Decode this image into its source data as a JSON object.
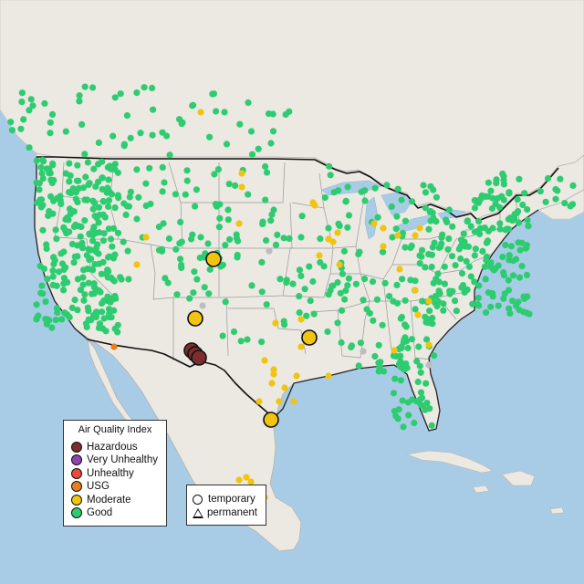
{
  "map": {
    "colors": {
      "water": "#a9cce6",
      "land": "#ece8e2",
      "land_border": "#8e8e8e",
      "country_border": "#111111",
      "grey_station": "#bdbdbd"
    }
  },
  "legend": {
    "title": "Air Quality Index",
    "items": [
      {
        "label": "Hazardous",
        "color": "#7e2d2d"
      },
      {
        "label": "Very Unhealthy",
        "color": "#8e44ad"
      },
      {
        "label": "Unhealthy",
        "color": "#e74c3c"
      },
      {
        "label": "USG",
        "color": "#e67e22"
      },
      {
        "label": "Moderate",
        "color": "#f1c40f"
      },
      {
        "label": "Good",
        "color": "#2ecc71"
      }
    ],
    "shapes": [
      {
        "label": "temporary",
        "shape": "circle"
      },
      {
        "label": "permanent",
        "shape": "triangle"
      }
    ]
  },
  "highlighted_stations": [
    {
      "aqi": "Hazardous",
      "shape": "circle"
    },
    {
      "aqi": "Hazardous",
      "shape": "circle"
    },
    {
      "aqi": "Hazardous",
      "shape": "circle"
    },
    {
      "aqi": "Moderate",
      "shape": "circle"
    },
    {
      "aqi": "Moderate",
      "shape": "circle"
    },
    {
      "aqi": "Moderate",
      "shape": "circle"
    },
    {
      "aqi": "Moderate",
      "shape": "circle"
    }
  ],
  "stations_sample": [
    {
      "aqi": "Good"
    },
    {
      "aqi": "Good"
    },
    {
      "aqi": "Good"
    },
    {
      "aqi": "Good"
    },
    {
      "aqi": "Good"
    },
    {
      "aqi": "Good"
    },
    {
      "aqi": "Good"
    },
    {
      "aqi": "Good"
    },
    {
      "aqi": "Good"
    },
    {
      "aqi": "Good"
    },
    {
      "aqi": "Good"
    },
    {
      "aqi": "Good"
    },
    {
      "aqi": "Good"
    },
    {
      "aqi": "Good"
    },
    {
      "aqi": "Good"
    },
    {
      "aqi": "Good"
    },
    {
      "aqi": "Moderate"
    },
    {
      "aqi": "Moderate"
    },
    {
      "aqi": "Moderate"
    },
    {
      "aqi": "Moderate"
    },
    {
      "aqi": "Moderate"
    },
    {
      "aqi": "Moderate"
    },
    {
      "aqi": "Moderate"
    },
    {
      "aqi": "Moderate"
    },
    {
      "aqi": "Moderate"
    },
    {
      "aqi": "Moderate"
    },
    {
      "aqi": "USG"
    },
    {
      "aqi": "Grey"
    },
    {
      "aqi": "Grey"
    },
    {
      "aqi": "Grey"
    },
    {
      "aqi": "Grey"
    }
  ]
}
